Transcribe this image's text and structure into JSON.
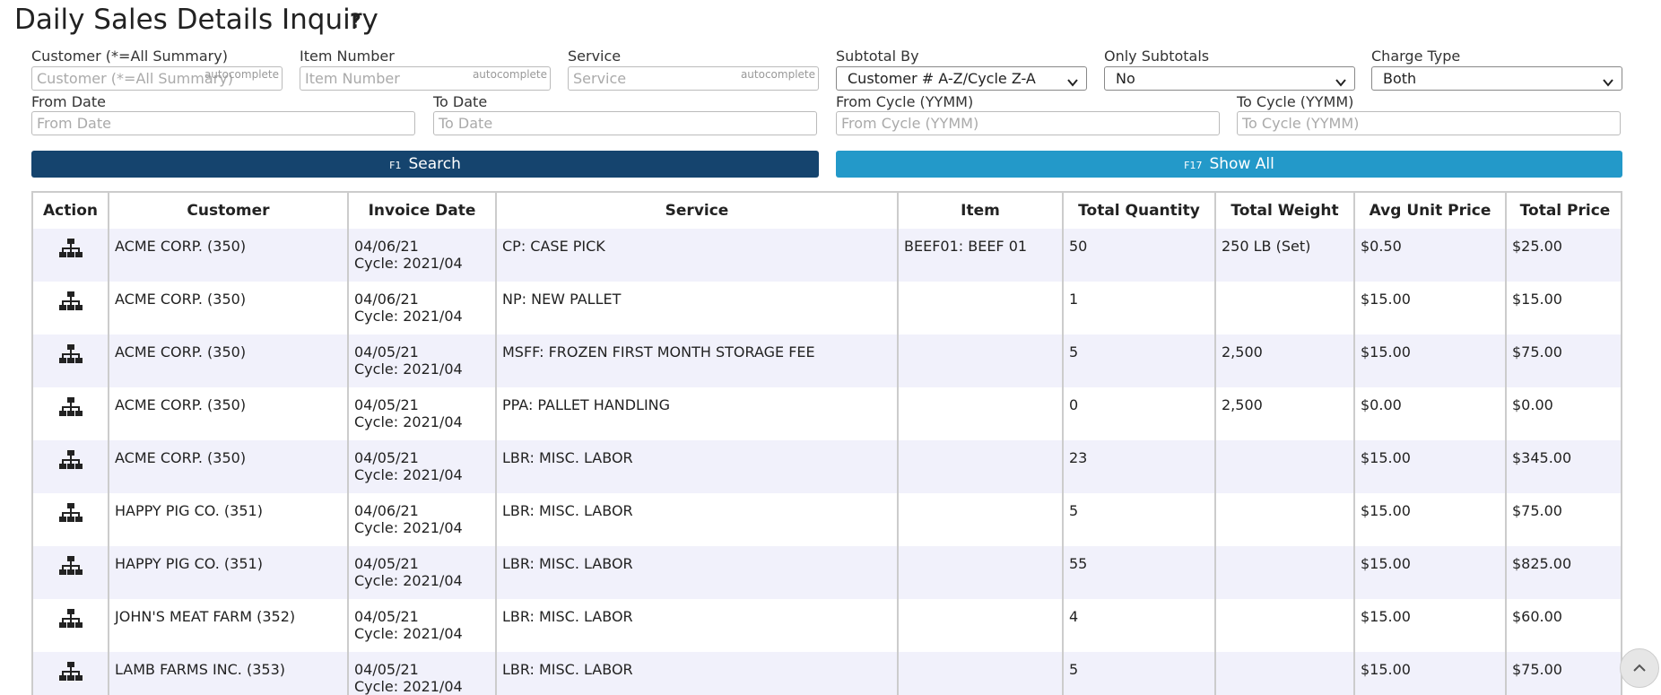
{
  "header": {
    "title": "Daily Sales Details Inquiry",
    "help": "?"
  },
  "filters_row1": [
    {
      "label": "Customer (*=All Summary)",
      "placeholder": "Customer (*=All Summary)",
      "badge": "autocomplete"
    },
    {
      "label": "Item Number",
      "placeholder": "Item Number",
      "badge": "autocomplete"
    },
    {
      "label": "Service",
      "placeholder": "Service",
      "badge": "autocomplete"
    },
    {
      "label": "Subtotal By",
      "value": "Customer # A-Z/Cycle Z-A"
    },
    {
      "label": "Only Subtotals",
      "value": "No"
    },
    {
      "label": "Charge Type",
      "value": "Both"
    }
  ],
  "filters_row2": [
    {
      "label": "From Date",
      "placeholder": "From Date"
    },
    {
      "label": "To Date",
      "placeholder": "To Date"
    },
    {
      "label": "From Cycle (YYMM)",
      "placeholder": "From Cycle (YYMM)"
    },
    {
      "label": "To Cycle (YYMM)",
      "placeholder": "To Cycle (YYMM)"
    }
  ],
  "buttons": [
    {
      "key": "F1",
      "label": "Search"
    },
    {
      "key": "F17",
      "label": "Show All"
    }
  ],
  "table": {
    "columns": [
      "Action",
      "Customer",
      "Invoice Date",
      "Service",
      "Item",
      "Total Quantity",
      "Total Weight",
      "Avg Unit Price",
      "Total Price"
    ],
    "rows": [
      {
        "customer": "ACME CORP. (350)",
        "date": "04/06/21",
        "cycle": "Cycle: 2021/04",
        "service": "CP: CASE PICK",
        "item": "BEEF01: BEEF 01",
        "qty": "50",
        "weight": "250 LB (Set)",
        "avg": "$0.50",
        "total": "$25.00"
      },
      {
        "customer": "ACME CORP. (350)",
        "date": "04/06/21",
        "cycle": "Cycle: 2021/04",
        "service": "NP: NEW PALLET",
        "item": "",
        "qty": "1",
        "weight": "",
        "avg": "$15.00",
        "total": "$15.00"
      },
      {
        "customer": "ACME CORP. (350)",
        "date": "04/05/21",
        "cycle": "Cycle: 2021/04",
        "service": "MSFF: FROZEN FIRST MONTH STORAGE FEE",
        "item": "",
        "qty": "5",
        "weight": "2,500",
        "avg": "$15.00",
        "total": "$75.00"
      },
      {
        "customer": "ACME CORP. (350)",
        "date": "04/05/21",
        "cycle": "Cycle: 2021/04",
        "service": "PPA: PALLET HANDLING",
        "item": "",
        "qty": "0",
        "weight": "2,500",
        "avg": "$0.00",
        "total": "$0.00"
      },
      {
        "customer": "ACME CORP. (350)",
        "date": "04/05/21",
        "cycle": "Cycle: 2021/04",
        "service": "LBR: MISC. LABOR",
        "item": "",
        "qty": "23",
        "weight": "",
        "avg": "$15.00",
        "total": "$345.00"
      },
      {
        "customer": "HAPPY PIG CO. (351)",
        "date": "04/06/21",
        "cycle": "Cycle: 2021/04",
        "service": "LBR: MISC. LABOR",
        "item": "",
        "qty": "5",
        "weight": "",
        "avg": "$15.00",
        "total": "$75.00"
      },
      {
        "customer": "HAPPY PIG CO. (351)",
        "date": "04/05/21",
        "cycle": "Cycle: 2021/04",
        "service": "LBR: MISC. LABOR",
        "item": "",
        "qty": "55",
        "weight": "",
        "avg": "$15.00",
        "total": "$825.00"
      },
      {
        "customer": "JOHN'S MEAT FARM (352)",
        "date": "04/05/21",
        "cycle": "Cycle: 2021/04",
        "service": "LBR: MISC. LABOR",
        "item": "",
        "qty": "4",
        "weight": "",
        "avg": "$15.00",
        "total": "$60.00"
      },
      {
        "customer": "LAMB FARMS INC. (353)",
        "date": "04/05/21",
        "cycle": "Cycle: 2021/04",
        "service": "LBR: MISC. LABOR",
        "item": "",
        "qty": "5",
        "weight": "",
        "avg": "$15.00",
        "total": "$75.00"
      }
    ]
  }
}
